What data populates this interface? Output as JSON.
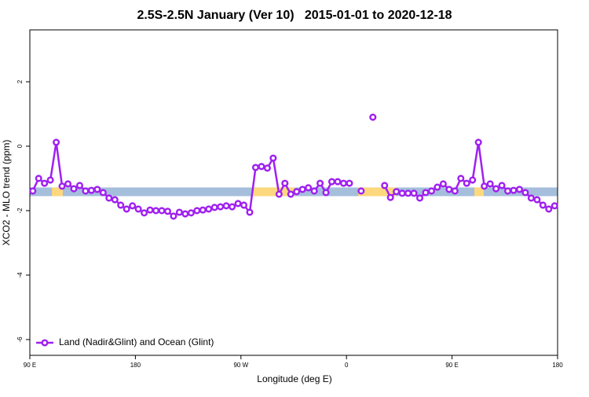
{
  "chart_data": {
    "type": "line",
    "title": "2.5S-2.5N January (Ver 10)   2015-01-01 to 2020-12-18",
    "x_label": "Longitude (deg E)",
    "y_label": "XCO2 - MLO trend (ppm)",
    "xlim": [
      90,
      540
    ],
    "ylim": [
      -6.49,
      3.61
    ],
    "xticks": [
      {
        "value": 90,
        "label": "90 E"
      },
      180,
      {
        "value": 270,
        "label": "90 W"
      },
      {
        "value": 360,
        "label": "0"
      },
      {
        "value": 450,
        "label": "90 E"
      },
      {
        "value": 540,
        "label": "180"
      }
    ],
    "yticks": [
      -6,
      -4,
      -2,
      0,
      2
    ],
    "legend": "bottom-left",
    "band": {
      "ylim": [
        -1.55,
        -1.28
      ],
      "color": "#a4bedc",
      "land_color": "#fdd87e",
      "land_x": [
        [
          108.8,
          118.1
        ],
        [
          280,
          315.7
        ],
        [
          370,
          402.7
        ],
        [
          469,
          477
        ]
      ]
    },
    "x": [
      92.5,
      97.5,
      102.5,
      107.5,
      112.5,
      117.5,
      122.5,
      127.5,
      132.5,
      137.5,
      142.5,
      147.5,
      152.5,
      157.5,
      162.5,
      167.5,
      172.5,
      177.5,
      182.5,
      187.5,
      192.5,
      197.5,
      202.5,
      207.5,
      212.5,
      217.5,
      222.5,
      227.5,
      232.5,
      237.5,
      242.5,
      247.5,
      252.5,
      257.5,
      262.5,
      267.5,
      272.5,
      277.5,
      282.5,
      287.5,
      292.5,
      297.5,
      302.5,
      307.5,
      312.5,
      317.5,
      322.5,
      327.5,
      332.5,
      337.5,
      342.5,
      347.5,
      352.5,
      357.5,
      362.5,
      367.5,
      372.5,
      377.5,
      382.5,
      387.5,
      392.5,
      397.5,
      402.5,
      407.5,
      412.5,
      417.5,
      422.5,
      427.5,
      432.5,
      437.5,
      442.5,
      447.5,
      452.5,
      457.5,
      462.5,
      467.5,
      472.5,
      477.5,
      482.5,
      487.5,
      492.5,
      497.5,
      502.5,
      507.5,
      512.5,
      517.5,
      522.5,
      527.5,
      532.5,
      537.5
    ],
    "series": [
      {
        "name": "Land (Nadir&Glint) and Ocean (Glint)",
        "color": "#a020f0",
        "values": [
          -1.39,
          -1.0,
          -1.15,
          -1.05,
          0.12,
          -1.24,
          -1.17,
          -1.32,
          -1.22,
          -1.39,
          -1.37,
          -1.34,
          -1.44,
          -1.61,
          -1.66,
          -1.83,
          -1.95,
          -1.85,
          -1.95,
          -2.07,
          -1.98,
          -2.0,
          -2.0,
          -2.02,
          -2.17,
          -2.05,
          -2.1,
          -2.07,
          -2.0,
          -1.98,
          -1.95,
          -1.9,
          -1.88,
          -1.85,
          -1.88,
          -1.78,
          -1.83,
          -2.05,
          -0.66,
          -0.63,
          -0.68,
          -0.37,
          -1.49,
          -1.15,
          -1.49,
          -1.41,
          -1.34,
          -1.29,
          -1.39,
          -1.15,
          -1.44,
          -1.1,
          -1.1,
          -1.15,
          -1.15,
          null,
          -1.39,
          null,
          0.9,
          null,
          -1.22,
          -1.59,
          -1.41,
          -1.46,
          -1.46,
          -1.46,
          -1.61,
          -1.44,
          -1.39,
          -1.27,
          -1.17,
          -1.34,
          -1.39,
          -1.0,
          -1.15,
          -1.05,
          0.12,
          -1.24,
          -1.17,
          -1.32,
          -1.22,
          -1.39,
          -1.37,
          -1.34,
          -1.44,
          -1.61,
          -1.66,
          -1.83,
          -1.95,
          -1.85
        ]
      }
    ]
  }
}
